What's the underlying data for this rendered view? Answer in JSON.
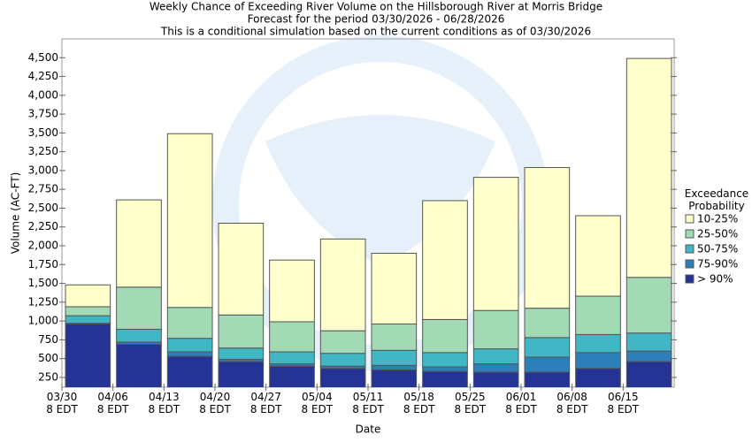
{
  "chart_data": {
    "type": "stacked_bar",
    "title": "Weekly Chance of Exceeding River Volume on the Hillsborough River at Morris Bridge",
    "subtitle": "Forecast for the period 03/30/2026 - 06/28/2026",
    "note": "This is a conditional simulation based on the current conditions as of 03/30/2026",
    "x_label": "Date",
    "y_label": "Volume (AC-FT)",
    "legend_title": "Exceedance\nProbability",
    "legend": "right",
    "categories": [
      "03/30\n8 EDT",
      "04/06\n8 EDT",
      "04/13\n8 EDT",
      "04/20\n8 EDT",
      "04/27\n8 EDT",
      "05/04\n8 EDT",
      "05/11\n8 EDT",
      "05/18\n8 EDT",
      "05/25\n8 EDT",
      "06/01\n8 EDT",
      "06/08\n8 EDT",
      "06/15\n8 EDT"
    ],
    "series": [
      {
        "name": "> 90%",
        "color": "#253494",
        "values": [
          960,
          690,
          530,
          460,
          400,
          370,
          350,
          330,
          320,
          320,
          370,
          460
        ]
      },
      {
        "name": "75-90%",
        "color": "#2c7fb8",
        "values": [
          10,
          30,
          60,
          30,
          30,
          30,
          60,
          60,
          110,
          200,
          210,
          140
        ]
      },
      {
        "name": "50-75%",
        "color": "#41b6c4",
        "values": [
          100,
          170,
          180,
          150,
          160,
          170,
          200,
          190,
          200,
          260,
          240,
          240
        ]
      },
      {
        "name": "25-50%",
        "color": "#a1dab4",
        "values": [
          120,
          560,
          410,
          440,
          400,
          300,
          350,
          440,
          510,
          390,
          510,
          740
        ]
      },
      {
        "name": "10-25%",
        "color": "#ffffcc",
        "values": [
          290,
          1160,
          2310,
          1220,
          820,
          1220,
          940,
          1580,
          1770,
          1870,
          1070,
          2910
        ]
      }
    ],
    "ylim": [
      120,
      4750
    ],
    "yticks": [
      250,
      500,
      750,
      {
        "value": 1000,
        "label": "1,000"
      },
      {
        "value": 1250,
        "label": "1,250"
      },
      {
        "value": 1500,
        "label": "1,500"
      },
      {
        "value": 1750,
        "label": "1,750"
      },
      {
        "value": 2000,
        "label": "2,000"
      },
      {
        "value": 2250,
        "label": "2,250"
      },
      {
        "value": 2500,
        "label": "2,500"
      },
      {
        "value": 2750,
        "label": "2,750"
      },
      {
        "value": 3000,
        "label": "3,000"
      },
      {
        "value": 3250,
        "label": "3,250"
      },
      {
        "value": 3500,
        "label": "3,500"
      },
      {
        "value": 3750,
        "label": "3,750"
      },
      {
        "value": 4000,
        "label": "4,000"
      },
      {
        "value": 4250,
        "label": "4,250"
      },
      {
        "value": 4500,
        "label": "4,500"
      }
    ]
  }
}
